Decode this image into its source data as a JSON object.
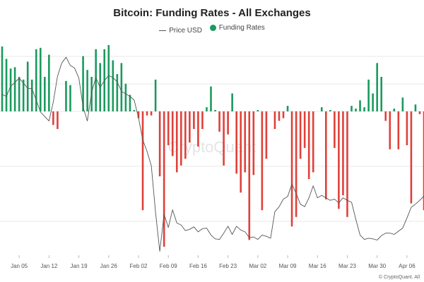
{
  "chart_data": {
    "type": "bar",
    "title": "Bitcoin: Funding Rates - All Exchanges",
    "legend": [
      {
        "name": "Price USD",
        "kind": "line",
        "color": "#555555"
      },
      {
        "name": "Funding Rates",
        "kind": "bar",
        "color": "#1a9a5e"
      }
    ],
    "x_tick_labels": [
      "Jan 05",
      "Jan 12",
      "Jan 19",
      "Jan 26",
      "Feb 02",
      "Feb 09",
      "Feb 16",
      "Feb 23",
      "Mar 02",
      "Mar 09",
      "Mar 16",
      "Mar 23",
      "Mar 30",
      "Apr 06"
    ],
    "x_tick_day_index": [
      4,
      11,
      18,
      25,
      32,
      39,
      46,
      53,
      60,
      67,
      74,
      81,
      88,
      95
    ],
    "x_day_range": [
      0,
      99.5
    ],
    "xlabel": "",
    "ylabel": "",
    "grid": true,
    "funding_ylim": [
      -0.01,
      0.005
    ],
    "price_ylim": [
      76000,
      110000
    ],
    "series": [
      {
        "name": "Funding Rates",
        "values": [
          0.0047,
          0.0038,
          0.0031,
          0.0032,
          0.0025,
          0.0023,
          0.0036,
          0.0023,
          0.0045,
          0.0046,
          0.0025,
          0.0041,
          -0.001,
          -0.0013,
          0.0,
          0.0022,
          0.0019,
          0.0,
          0.0,
          0.004,
          0.003,
          0.0025,
          0.0045,
          0.0035,
          0.0045,
          0.0048,
          0.0037,
          0.0027,
          0.0035,
          0.002,
          0.0012,
          0.0001,
          -0.0005,
          -0.0073,
          -0.0003,
          -0.0003,
          0.0023,
          -0.0048,
          -0.01,
          -0.0025,
          -0.0033,
          -0.0045,
          -0.004,
          -0.0035,
          -0.0023,
          -0.0013,
          -0.0026,
          -0.0013,
          0.0003,
          0.0018,
          0.0001,
          -0.0015,
          -0.004,
          -0.0017,
          0.0013,
          -0.0046,
          -0.006,
          -0.0045,
          -0.0095,
          -0.0047,
          0.0001,
          -0.0073,
          -0.0035,
          0.0,
          -0.0013,
          -0.0007,
          -0.0005,
          0.0004,
          -0.0085,
          -0.0078,
          -0.0035,
          -0.0027,
          -0.005,
          -0.0045,
          0.0,
          0.0003,
          -0.0065,
          0.0001,
          -0.0027,
          -0.0072,
          -0.0062,
          -0.0078,
          0.0004,
          0.0002,
          0.0008,
          0.0003,
          0.0023,
          0.0013,
          0.0035,
          0.0025,
          -0.0007,
          -0.0028,
          0.0002,
          -0.0028,
          0.001,
          -0.0025,
          -0.0068,
          0.0005,
          -0.0002,
          -0.0073
        ]
      },
      {
        "name": "Price USD",
        "values": [
          101500,
          101200,
          102800,
          103400,
          104100,
          103300,
          102500,
          102400,
          100600,
          98700,
          98000,
          97300,
          100300,
          104400,
          106500,
          107400,
          106100,
          105700,
          104100,
          99500,
          97300,
          101800,
          104200,
          102600,
          103700,
          104500,
          104200,
          103500,
          102000,
          101600,
          101200,
          100600,
          97800,
          94300,
          92500,
          90200,
          82800,
          76600,
          82500,
          80400,
          83200,
          81100,
          80800,
          79900,
          80100,
          80500,
          79700,
          80200,
          80300,
          79200,
          78600,
          78500,
          79500,
          80600,
          79300,
          80600,
          80000,
          79700,
          78800,
          78900,
          78500,
          79200,
          79000,
          78700,
          82900,
          83700,
          84900,
          85300,
          87300,
          85800,
          84100,
          83700,
          85100,
          87000,
          85100,
          85500,
          85100,
          84700,
          84900,
          84300,
          85100,
          84700,
          84400,
          81700,
          79200,
          78500,
          78700,
          78600,
          78400,
          79100,
          79500,
          79500,
          79300,
          79800,
          80300,
          81900,
          83600,
          84100,
          84700,
          85400
        ]
      }
    ]
  },
  "watermark": "CryptoQuant",
  "credit": "© CryptoQuant. All",
  "colors": {
    "positive": "#1a9a5e",
    "negative": "#e0403a",
    "price_line": "#555555",
    "grid": "#e8e8e8",
    "tick_text": "#555555"
  }
}
